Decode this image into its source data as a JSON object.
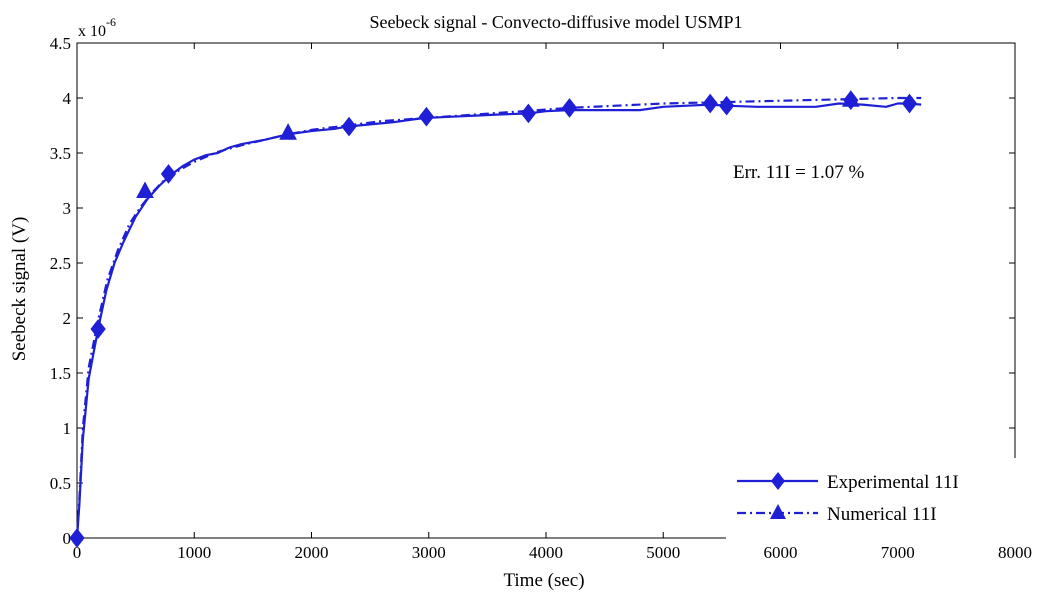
{
  "colors": {
    "series": "#1f1fd6",
    "axis": "#000000",
    "background": "#ffffff"
  },
  "chart_data": {
    "type": "line",
    "title": "Seebeck signal - Convecto-diffusive model USMP1",
    "xlabel": "Time (sec)",
    "ylabel": "Seebeck signal (V)",
    "xlim": [
      0,
      8000
    ],
    "ylim": [
      0,
      4.5
    ],
    "y_scale_label": "x 10",
    "y_scale_exponent": "-6",
    "x_ticks": [
      "0",
      "1000",
      "2000",
      "3000",
      "4000",
      "5000",
      "6000",
      "7000",
      "8000"
    ],
    "y_ticks": [
      "0",
      "0.5",
      "1",
      "1.5",
      "2",
      "2.5",
      "3",
      "3.5",
      "4",
      "4.5"
    ],
    "grid": false,
    "legend_position": "bottom-right",
    "annotation": "Err. 11I = 1.07 %",
    "series": [
      {
        "name": "Experimental 11I",
        "line_style": "solid",
        "marker": "diamond",
        "points": [
          [
            0,
            0
          ],
          [
            20,
            0.3
          ],
          [
            50,
            0.9
          ],
          [
            100,
            1.45
          ],
          [
            180,
            1.9
          ],
          [
            250,
            2.25
          ],
          [
            320,
            2.5
          ],
          [
            400,
            2.7
          ],
          [
            500,
            2.92
          ],
          [
            600,
            3.08
          ],
          [
            700,
            3.2
          ],
          [
            800,
            3.3
          ],
          [
            900,
            3.38
          ],
          [
            1000,
            3.44
          ],
          [
            1100,
            3.48
          ],
          [
            1200,
            3.5
          ],
          [
            1300,
            3.55
          ],
          [
            1400,
            3.58
          ],
          [
            1600,
            3.62
          ],
          [
            1800,
            3.67
          ],
          [
            2000,
            3.7
          ],
          [
            2200,
            3.72
          ],
          [
            2300,
            3.74
          ],
          [
            2500,
            3.76
          ],
          [
            2700,
            3.78
          ],
          [
            2900,
            3.81
          ],
          [
            3000,
            3.82
          ],
          [
            3200,
            3.83
          ],
          [
            3400,
            3.84
          ],
          [
            3600,
            3.85
          ],
          [
            3850,
            3.86
          ],
          [
            4000,
            3.88
          ],
          [
            4200,
            3.89
          ],
          [
            4400,
            3.89
          ],
          [
            4600,
            3.89
          ],
          [
            4800,
            3.89
          ],
          [
            5000,
            3.92
          ],
          [
            5200,
            3.93
          ],
          [
            5400,
            3.94
          ],
          [
            5540,
            3.93
          ],
          [
            5800,
            3.92
          ],
          [
            6000,
            3.92
          ],
          [
            6300,
            3.92
          ],
          [
            6500,
            3.95
          ],
          [
            6700,
            3.94
          ],
          [
            6900,
            3.92
          ],
          [
            7000,
            3.95
          ],
          [
            7100,
            3.95
          ],
          [
            7200,
            3.94
          ]
        ],
        "marker_points": [
          [
            0,
            0
          ],
          [
            180,
            1.9
          ],
          [
            780,
            3.31
          ],
          [
            2320,
            3.74
          ],
          [
            2980,
            3.83
          ],
          [
            3850,
            3.86
          ],
          [
            4200,
            3.91
          ],
          [
            5400,
            3.95
          ],
          [
            5540,
            3.93
          ],
          [
            6600,
            3.98
          ],
          [
            7100,
            3.95
          ]
        ]
      },
      {
        "name": "Numerical 11I",
        "line_style": "dash-dot",
        "marker": "triangle",
        "points": [
          [
            0,
            0
          ],
          [
            20,
            0.35
          ],
          [
            50,
            1.0
          ],
          [
            100,
            1.55
          ],
          [
            180,
            1.98
          ],
          [
            260,
            2.35
          ],
          [
            350,
            2.62
          ],
          [
            450,
            2.86
          ],
          [
            550,
            3.02
          ],
          [
            650,
            3.15
          ],
          [
            750,
            3.26
          ],
          [
            850,
            3.33
          ],
          [
            1000,
            3.42
          ],
          [
            1200,
            3.51
          ],
          [
            1400,
            3.57
          ],
          [
            1600,
            3.62
          ],
          [
            1800,
            3.67
          ],
          [
            2000,
            3.71
          ],
          [
            2300,
            3.75
          ],
          [
            2600,
            3.79
          ],
          [
            3000,
            3.82
          ],
          [
            3400,
            3.85
          ],
          [
            3800,
            3.88
          ],
          [
            4200,
            3.91
          ],
          [
            4600,
            3.93
          ],
          [
            5000,
            3.95
          ],
          [
            5400,
            3.96
          ],
          [
            5800,
            3.97
          ],
          [
            6200,
            3.98
          ],
          [
            6600,
            3.99
          ],
          [
            7000,
            4.0
          ],
          [
            7200,
            4.0
          ]
        ],
        "marker_points": [
          [
            580,
            3.15
          ],
          [
            1800,
            3.68
          ],
          [
            6600,
            3.98
          ]
        ]
      }
    ]
  }
}
